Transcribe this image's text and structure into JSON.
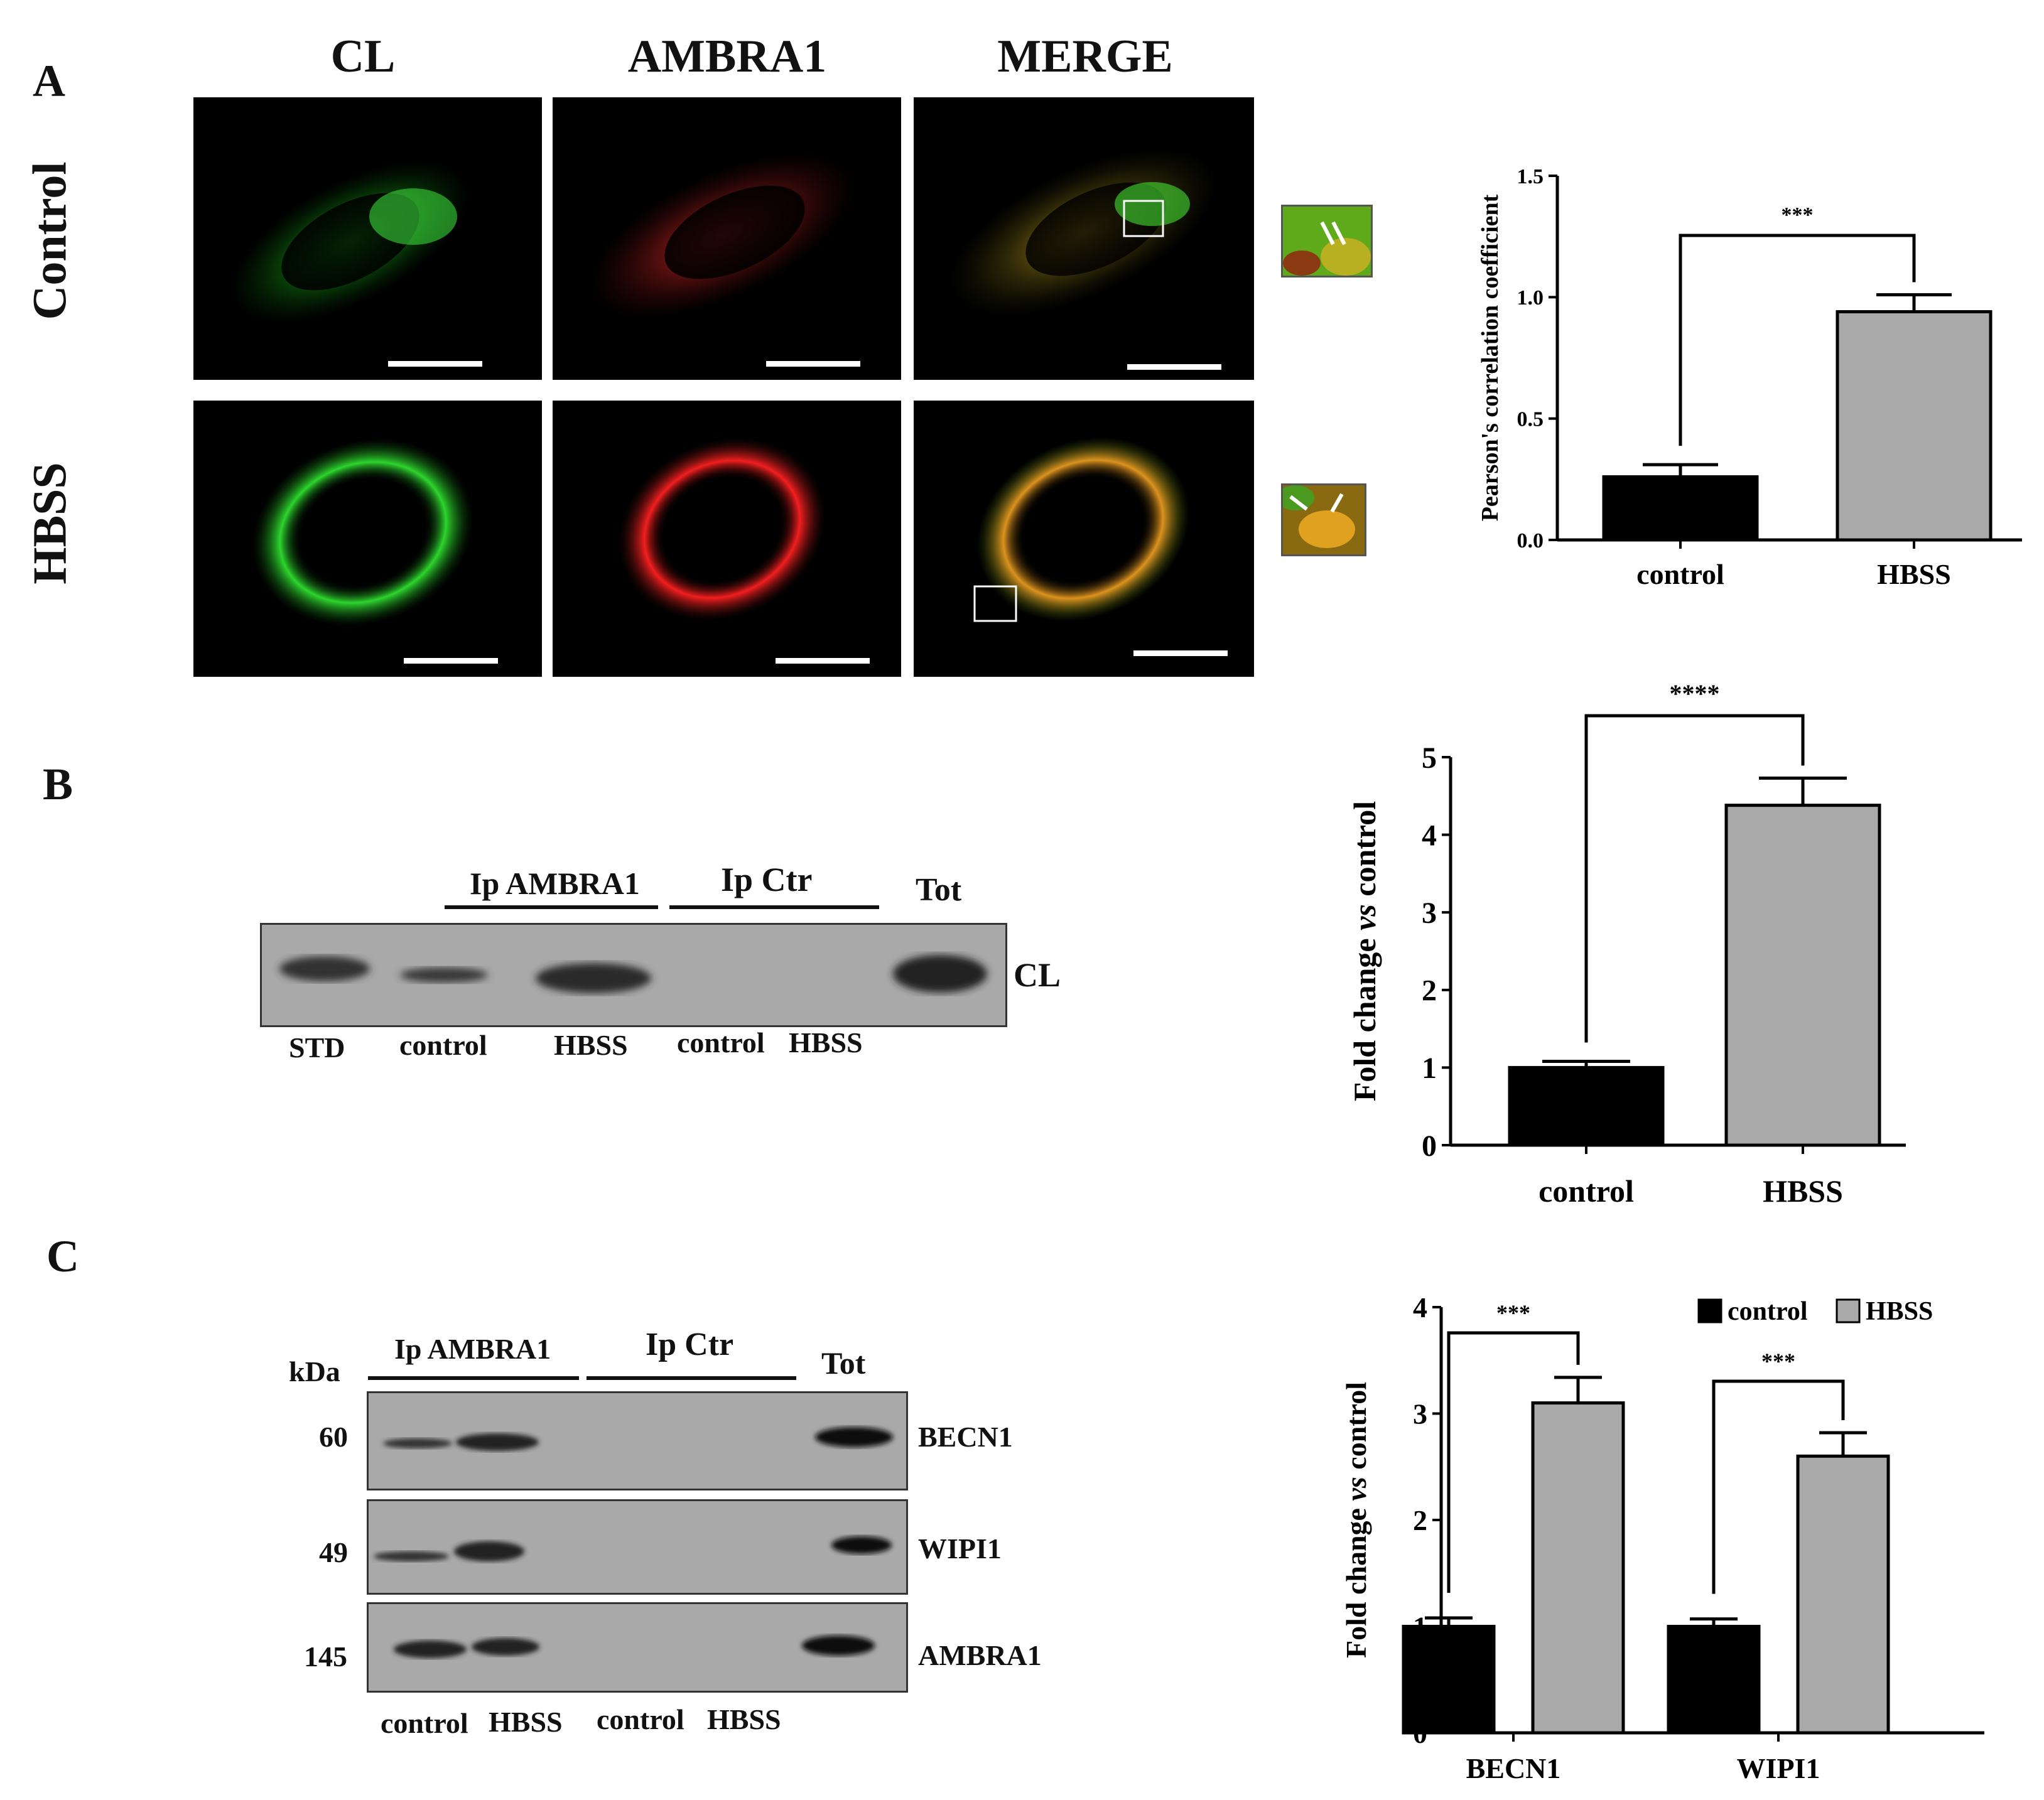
{
  "panels": {
    "a": {
      "letter": "A",
      "columns": [
        "CL",
        "AMBRA1",
        "MERGE"
      ],
      "rows": [
        "Control",
        "HBSS"
      ]
    },
    "b": {
      "letter": "B",
      "headers": {
        "ip_ambra1": "Ip AMBRA1",
        "ip_ctr": "Ip Ctr",
        "tot": "Tot"
      },
      "band_label": "CL",
      "lanes": [
        "STD",
        "control",
        "HBSS",
        "control",
        "HBSS"
      ]
    },
    "c": {
      "letter": "C",
      "kda": "kDa",
      "headers": {
        "ip_ambra1": "Ip AMBRA1",
        "ip_ctr": "Ip Ctr",
        "tot": "Tot"
      },
      "blots": [
        {
          "marker": "60",
          "label": "BECN1"
        },
        {
          "marker": "49",
          "label": "WIPI1"
        },
        {
          "marker": "145",
          "label": "AMBRA1"
        }
      ],
      "lanes": [
        "control",
        "HBSS",
        "control",
        "HBSS"
      ]
    }
  },
  "colors": {
    "control_bar": "#000000",
    "hbss_bar": "#aaaaaa",
    "cl_channel": "#22dd22",
    "ambra1_channel": "#ee1a1a",
    "merge_channel": "#e8a020",
    "blot_background": "#a9a9a9"
  },
  "chart_data": [
    {
      "type": "bar",
      "ylabel": "Pearson's correlation coefficient",
      "categories": [
        "control",
        "HBSS"
      ],
      "values": [
        0.26,
        0.94
      ],
      "errors": [
        0.05,
        0.07
      ],
      "ylim": [
        0,
        1.5
      ],
      "yticks": [
        "0.0",
        "0.5",
        "1.0",
        "1.5"
      ],
      "significance": "***"
    },
    {
      "type": "bar",
      "ylabel_parts": [
        "Fold change ",
        "vs",
        " control"
      ],
      "categories": [
        "control",
        "HBSS"
      ],
      "values": [
        1.0,
        4.38
      ],
      "errors": [
        0.08,
        0.35
      ],
      "ylim": [
        0,
        5
      ],
      "yticks": [
        "0",
        "1",
        "2",
        "3",
        "4",
        "5"
      ],
      "significance": "****"
    },
    {
      "type": "bar",
      "ylabel_parts": [
        "Fold change ",
        "vs",
        " control"
      ],
      "categories": [
        "BECN1",
        "WIPI1"
      ],
      "series": [
        {
          "name": "control",
          "values": [
            1.0,
            1.0
          ],
          "errors": [
            0.08,
            0.07
          ]
        },
        {
          "name": "HBSS",
          "values": [
            3.1,
            2.6
          ],
          "errors": [
            0.24,
            0.22
          ]
        }
      ],
      "ylim": [
        0,
        4
      ],
      "yticks": [
        "0",
        "1",
        "2",
        "3",
        "4"
      ],
      "significance": [
        "***",
        "***"
      ],
      "legend_position": "top-right"
    }
  ]
}
